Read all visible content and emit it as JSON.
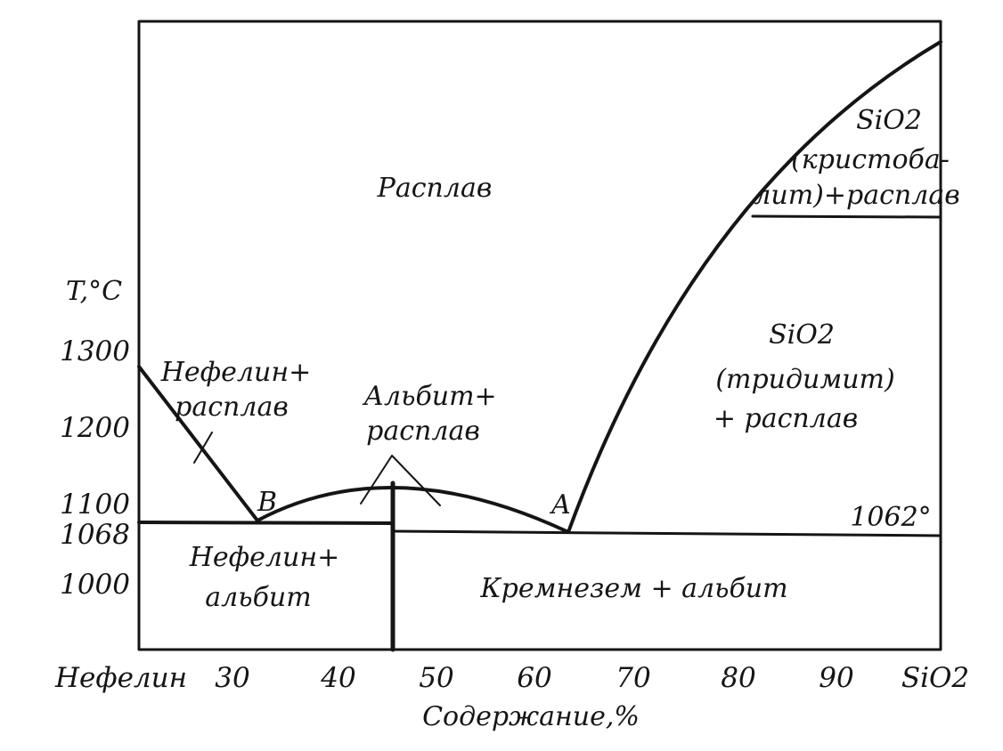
{
  "y_axis": {
    "title": "T,°C",
    "ticks": [
      "1300",
      "1200",
      "1100",
      "1068",
      "1000"
    ]
  },
  "x_axis": {
    "title": "Содержание,%",
    "ticks": [
      "Нефелин",
      "30",
      "40",
      "50",
      "60",
      "70",
      "80",
      "90",
      "SiO2"
    ]
  },
  "regions": {
    "melt": "Расплав",
    "nepheline_melt": [
      "Нефелин+",
      "расплав"
    ],
    "albite_melt": [
      "Альбит+",
      "расплав"
    ],
    "cristobalite_melt": [
      "SiO2",
      "(кристоба-",
      "лит)+расплав"
    ],
    "tridymite_melt": [
      "SiO2",
      "(тридимит)",
      "+ расплав"
    ],
    "nepheline_albite": [
      "Нефелин+",
      "альбит"
    ],
    "silica_albite": "Кремнезем + альбит"
  },
  "points": {
    "eutectic_b": "B",
    "eutectic_a": "A",
    "temp_a": "1062°"
  },
  "colors": {
    "ink": "#151515",
    "paper": "#ffffff"
  }
}
